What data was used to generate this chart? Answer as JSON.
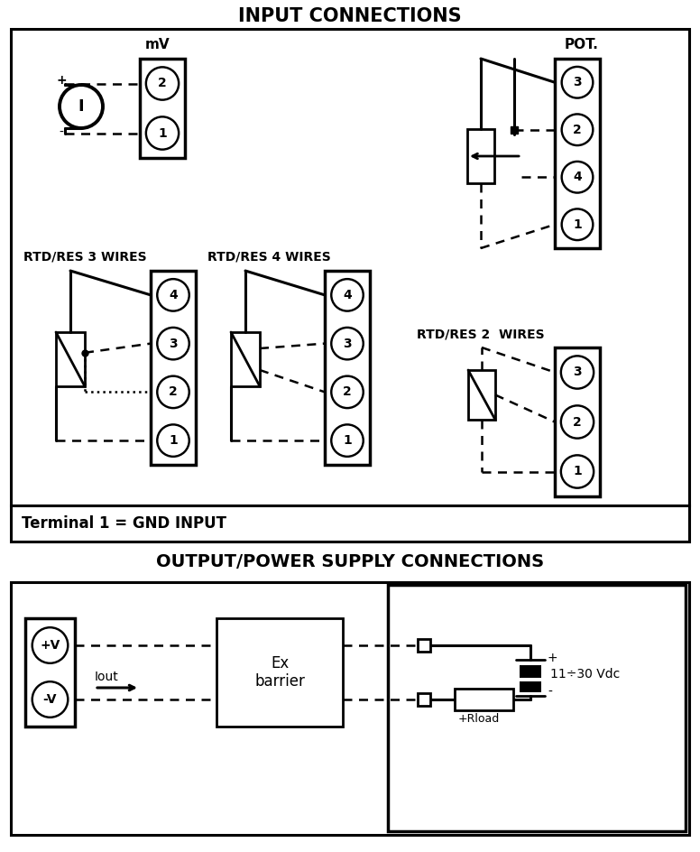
{
  "title_input": "INPUT CONNECTIONS",
  "title_output": "OUTPUT/POWER SUPPLY CONNECTIONS",
  "terminal_note": "Terminal 1 = GND INPUT",
  "mv_label": "mV",
  "pot_label": "POT.",
  "rtd3_label": "RTD/RES 3 WIRES",
  "rtd4_label": "RTD/RES 4 WIRES",
  "rtd2_label": "RTD/RES 2  WIRES",
  "ex_label": "Ex\nbarrier",
  "volt_label": "11÷30 Vdc",
  "rload_label": "+Rload",
  "iout_label": "Iout",
  "plus_label": "+",
  "minus_label": "-",
  "pv_label": "+V",
  "mv2_label": "-V"
}
